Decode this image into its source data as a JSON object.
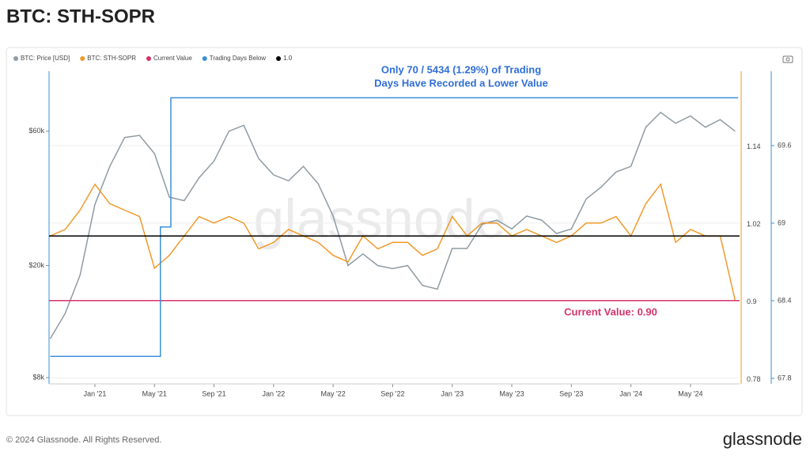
{
  "chart_data": {
    "type": "line",
    "title": "BTC: STH-SOPR",
    "annotation_lines": [
      "Only 70 / 5434 (1.29%) of Trading",
      "Days Have Recorded a Lower Value"
    ],
    "current_label": "Current Value: 0.90",
    "watermark": "glassnode",
    "footer": "© 2024 Glassnode. All Rights Reserved.",
    "brand": "glassnode",
    "x": [
      -3,
      -2,
      -1,
      0,
      1,
      2,
      3,
      4,
      5,
      6,
      7,
      8,
      9,
      10,
      11,
      12,
      13,
      14,
      15,
      16,
      17,
      18,
      19,
      20,
      21,
      22,
      23,
      24,
      25,
      26,
      27,
      28,
      29,
      30,
      31,
      32,
      33,
      34,
      35,
      36,
      37,
      38,
      39,
      40,
      41,
      42,
      43
    ],
    "xlim": [
      -3.08,
      43.3
    ],
    "xticks": [
      {
        "value": 0,
        "label": "Jan '21"
      },
      {
        "value": 4,
        "label": "May '21"
      },
      {
        "value": 8,
        "label": "Sep '21"
      },
      {
        "value": 12,
        "label": "Jan '22"
      },
      {
        "value": 16,
        "label": "May '22"
      },
      {
        "value": 20,
        "label": "Sep '22"
      },
      {
        "value": 24,
        "label": "Jan '23"
      },
      {
        "value": 28,
        "label": "May '23"
      },
      {
        "value": 32,
        "label": "Sep '23"
      },
      {
        "value": 36,
        "label": "Jan '24"
      },
      {
        "value": 40,
        "label": "May '24"
      }
    ],
    "ylim": [
      7600,
      98000
    ],
    "ylog": true,
    "yticks": [
      {
        "value": 8000,
        "label": "$8k"
      },
      {
        "value": 20000,
        "label": "$20k"
      },
      {
        "value": 60000,
        "label": "$60k"
      }
    ],
    "y2lim": [
      0.771,
      1.255
    ],
    "y2ticks": [
      0.78,
      0.9,
      1.02,
      1.14
    ],
    "y3lim": [
      67.757,
      70.175
    ],
    "y3ticks": [
      67.8,
      68.4,
      69,
      69.6
    ],
    "grid": true,
    "series": [
      {
        "name": "BTC: Price [USD]",
        "color": "#8f9ba3",
        "axis": "y",
        "values": [
          11000,
          13500,
          18500,
          33000,
          45000,
          57000,
          58000,
          50000,
          35000,
          34000,
          41000,
          47000,
          60000,
          63000,
          48000,
          42000,
          40000,
          45000,
          39000,
          30000,
          20000,
          22000,
          20000,
          19500,
          20000,
          17000,
          16500,
          23000,
          23000,
          28000,
          29000,
          27000,
          30000,
          29000,
          26000,
          27000,
          34500,
          38000,
          43000,
          45000,
          62000,
          70000,
          64000,
          68000,
          62000,
          66000,
          60000
        ]
      },
      {
        "name": "BTC: STH-SOPR",
        "color": "#f09a2a",
        "axis": "y2",
        "values": [
          1.0,
          1.01,
          1.04,
          1.08,
          1.05,
          1.04,
          1.03,
          0.95,
          0.97,
          1.0,
          1.03,
          1.02,
          1.03,
          1.02,
          0.98,
          0.99,
          1.01,
          1.0,
          0.99,
          0.97,
          0.96,
          1.0,
          0.98,
          0.99,
          0.99,
          0.97,
          0.98,
          1.03,
          1.0,
          1.02,
          1.02,
          1.0,
          1.01,
          1.0,
          0.99,
          1.0,
          1.02,
          1.02,
          1.03,
          1.0,
          1.05,
          1.08,
          0.99,
          1.01,
          1.0,
          1.0,
          0.9
        ]
      },
      {
        "name": "Current Value",
        "color": "#d6336c",
        "axis": "y2",
        "level": 0.9
      },
      {
        "name": "Trading Days Below",
        "color": "#3b8fd9",
        "axis": "y3",
        "x": [
          -3,
          4.4,
          4.4,
          5.1,
          5.1,
          43.2
        ],
        "values": [
          67.97,
          67.97,
          68.97,
          68.97,
          69.97,
          69.97
        ]
      },
      {
        "name": "1.0",
        "color": "#000000",
        "axis": "y2",
        "level": 1.0
      }
    ]
  }
}
